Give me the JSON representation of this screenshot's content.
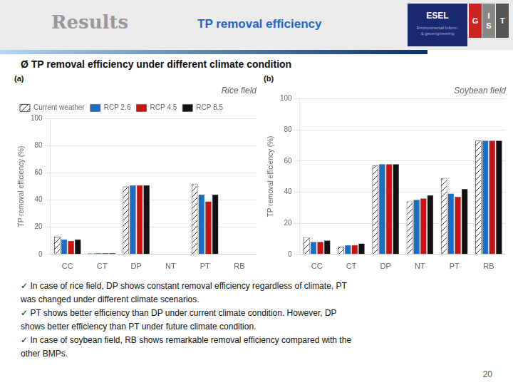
{
  "title": "Results",
  "subtitle": "TP removal efficiency",
  "annotations": {
    "heading": "Ø  TP removal efficiency under different climate condition",
    "logo": [
      "ESEL",
      "Environmental Inform.\n& geoengineering"
    ],
    "logo_columns": [
      [
        "G"
      ],
      [
        "I",
        "S"
      ],
      [
        "T"
      ]
    ],
    "notes": [
      "✓ In case of rice field, DP shows constant removal efficiency regardless of climate, PT",
      "was changed under different climate scenarios.",
      "✓ PT shows better efficiency than DP under current climate condition. However, DP",
      "shows better efficiency than PT under future climate condition.",
      "✓ In case of soybean field, RB shows remarkable removal efficiency compared with the",
      "other BMPs."
    ],
    "page_number": "20"
  },
  "chart_data": [
    {
      "type": "bar",
      "title": "Rice field",
      "annotations": [
        "(a)"
      ],
      "categories": [
        "CC",
        "CT",
        "DP",
        "NT",
        "PT",
        "RB"
      ],
      "series": [
        {
          "name": "Current weather",
          "color": "#ffffff",
          "values": [
            13,
            1,
            50,
            0,
            52,
            0
          ]
        },
        {
          "name": "RCP 2.6",
          "color": "#1a6fc4",
          "values": [
            11,
            1,
            51,
            0,
            44,
            0
          ]
        },
        {
          "name": "RCP 4.5",
          "color": "#cc1111",
          "values": [
            10,
            1,
            51,
            0,
            39,
            0
          ]
        },
        {
          "name": "RCP 8.5",
          "color": "#111111",
          "values": [
            11,
            1,
            51,
            0,
            44,
            0
          ]
        }
      ],
      "ylabel": "TP removal efficiency (%)",
      "ylim": [
        0,
        100
      ],
      "yticks": [
        0,
        20,
        40,
        60,
        80,
        100
      ],
      "grid": true,
      "legend": "upper left"
    },
    {
      "type": "bar",
      "title": "Soybean field",
      "annotations": [
        "(b)"
      ],
      "categories": [
        "CC",
        "CT",
        "DP",
        "NT",
        "PT",
        "RB"
      ],
      "series": [
        {
          "name": "Current weather",
          "color": "#ffffff",
          "values": [
            11,
            5,
            57,
            34,
            49,
            73
          ]
        },
        {
          "name": "RCP 2.6",
          "color": "#1a6fc4",
          "values": [
            8,
            6,
            58,
            35,
            39,
            73
          ]
        },
        {
          "name": "RCP 4.5",
          "color": "#cc1111",
          "values": [
            8,
            6,
            58,
            36,
            37,
            73
          ]
        },
        {
          "name": "RCP 8.5",
          "color": "#111111",
          "values": [
            9,
            7,
            58,
            38,
            42,
            73
          ]
        }
      ],
      "ylabel": "TP removal efficiency (%)",
      "ylim": [
        0,
        100
      ],
      "yticks": [
        0,
        20,
        40,
        60,
        80,
        100
      ],
      "grid": true
    }
  ]
}
